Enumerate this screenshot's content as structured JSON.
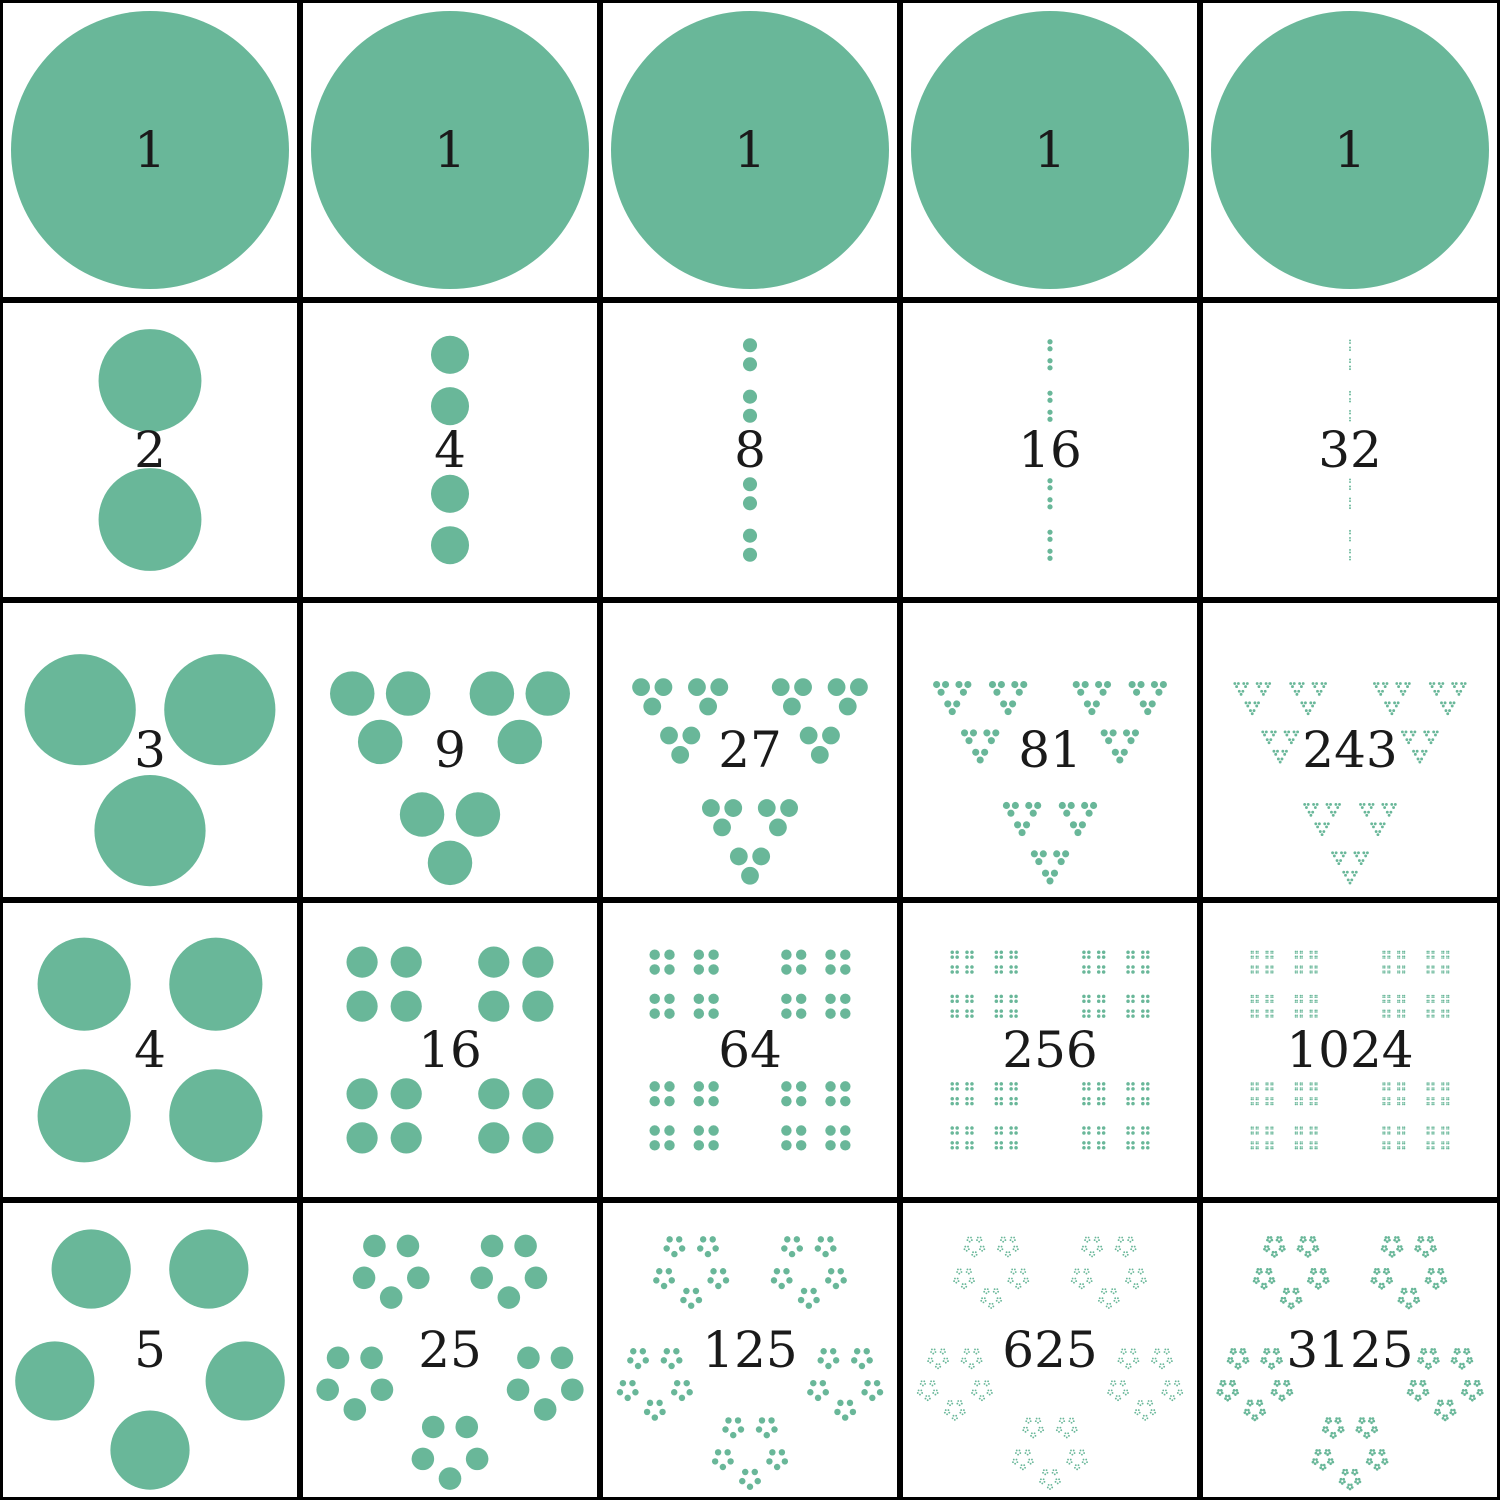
{
  "colors": {
    "dot": "#69b799",
    "border": "#000000",
    "label": "#1a1a1a",
    "background": "#ffffff"
  },
  "rows": [
    {
      "n": 1,
      "cells": [
        {
          "k": 0,
          "label": "1"
        },
        {
          "k": 0,
          "label": "1"
        },
        {
          "k": 0,
          "label": "1"
        },
        {
          "k": 0,
          "label": "1"
        },
        {
          "k": 0,
          "label": "1"
        }
      ]
    },
    {
      "n": 2,
      "cells": [
        {
          "k": 1,
          "label": "2"
        },
        {
          "k": 2,
          "label": "4"
        },
        {
          "k": 3,
          "label": "8"
        },
        {
          "k": 4,
          "label": "16"
        },
        {
          "k": 5,
          "label": "32"
        }
      ]
    },
    {
      "n": 3,
      "cells": [
        {
          "k": 1,
          "label": "3"
        },
        {
          "k": 2,
          "label": "9"
        },
        {
          "k": 3,
          "label": "27"
        },
        {
          "k": 4,
          "label": "81"
        },
        {
          "k": 5,
          "label": "243"
        }
      ]
    },
    {
      "n": 4,
      "cells": [
        {
          "k": 1,
          "label": "4"
        },
        {
          "k": 2,
          "label": "16"
        },
        {
          "k": 3,
          "label": "64"
        },
        {
          "k": 4,
          "label": "256"
        },
        {
          "k": 5,
          "label": "1024"
        }
      ]
    },
    {
      "n": 5,
      "cells": [
        {
          "k": 1,
          "label": "5"
        },
        {
          "k": 2,
          "label": "25"
        },
        {
          "k": 3,
          "label": "125"
        },
        {
          "k": 4,
          "label": "625"
        },
        {
          "k": 5,
          "label": "3125"
        }
      ]
    }
  ]
}
